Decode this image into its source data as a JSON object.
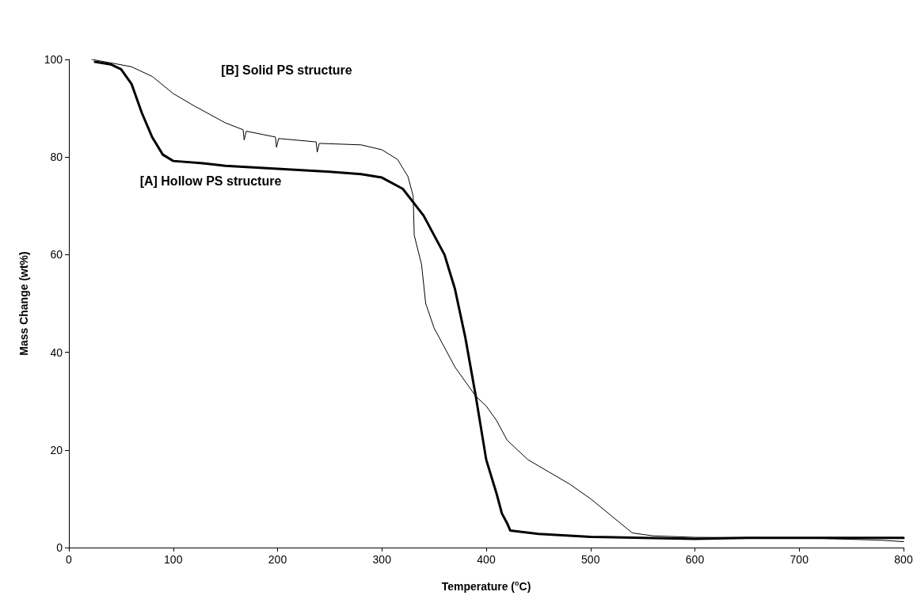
{
  "chart_data": {
    "type": "line",
    "xlabel": "Temperature ($^{o}$C)",
    "ylabel": "Mass Change (wt%)",
    "xlim": [
      0,
      800
    ],
    "xticks": [
      0,
      100,
      200,
      300,
      400,
      500,
      600,
      700,
      800
    ],
    "ylim": [
      0,
      100
    ],
    "yticks": [
      0,
      20,
      40,
      60,
      80,
      100
    ],
    "grid": false,
    "marker": "none",
    "line_style": "solid",
    "annotations": [
      "[A] Hollow PS structure",
      "[B] Solid PS structure"
    ],
    "series": [
      {
        "color": "#000000",
        "x": [
          25,
          40,
          50,
          60,
          70,
          80,
          90,
          100,
          130,
          150,
          200,
          250,
          280,
          300,
          320,
          340,
          360,
          370,
          380,
          390,
          400,
          410,
          415,
          420,
          423,
          450,
          500,
          550,
          600,
          650,
          700,
          800
        ],
        "values": [
          99.5,
          99,
          98,
          95,
          89,
          84,
          80.5,
          79.2,
          78.7,
          78.2,
          77.6,
          77,
          76.5,
          75.8,
          73.5,
          68,
          60,
          53,
          43,
          31,
          18,
          11,
          7,
          5,
          3.5,
          2.8,
          2.2,
          2,
          1.8,
          2,
          2,
          2
        ]
      },
      {
        "color": "#000000",
        "x": [
          22,
          40,
          60,
          80,
          100,
          120,
          150,
          167,
          168,
          170,
          198,
          199,
          201,
          237,
          238,
          240,
          280,
          300,
          315,
          325,
          330,
          331,
          338,
          342,
          350,
          370,
          390,
          400,
          410,
          420,
          440,
          460,
          480,
          500,
          520,
          540,
          560,
          600,
          700,
          780,
          800
        ],
        "values": [
          100,
          99.3,
          98.5,
          96.5,
          93,
          90.5,
          87,
          85.6,
          83.5,
          85.3,
          84.1,
          82,
          83.8,
          83.1,
          81,
          82.8,
          82.5,
          81.5,
          79.5,
          76,
          72,
          64,
          58,
          50,
          45,
          37,
          31,
          29,
          26,
          22,
          18,
          15.5,
          13,
          10,
          6.5,
          3,
          2.4,
          2.1,
          2,
          1.5,
          1.2
        ]
      }
    ]
  }
}
